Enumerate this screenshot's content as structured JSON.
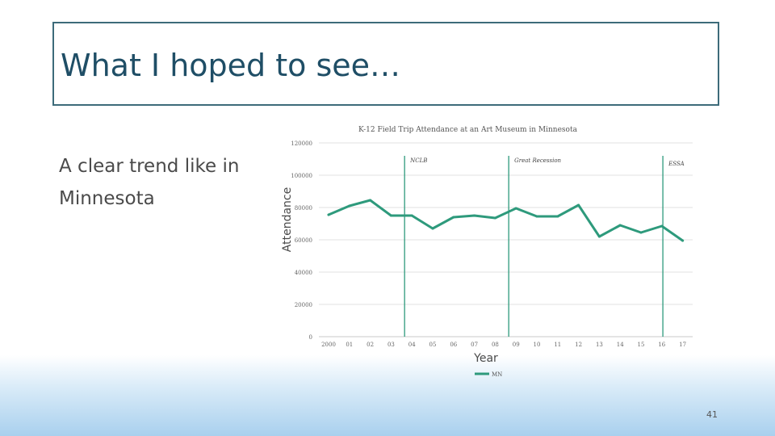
{
  "slide": {
    "title": "What I hoped to see…",
    "body": "A clear trend like in Minnesota",
    "page_number": "41"
  },
  "chart_data": {
    "type": "line",
    "title": "K-12 Field Trip Attendance at an Art Museum in Minnesota",
    "xlabel": "Year",
    "ylabel": "Attendance",
    "ylim": [
      0,
      120000
    ],
    "yticks": [
      0,
      20000,
      40000,
      60000,
      80000,
      100000,
      120000
    ],
    "ytick_labels": [
      "0",
      "20000",
      "40000",
      "60000",
      "80000",
      "100000",
      "120000"
    ],
    "categories": [
      "2000",
      "01",
      "02",
      "03",
      "04",
      "05",
      "06",
      "07",
      "08",
      "09",
      "10",
      "11",
      "12",
      "13",
      "14",
      "15",
      "16",
      "17"
    ],
    "grid": true,
    "legend_position": "bottom",
    "series": [
      {
        "name": "MN",
        "color": "#2e9a7c",
        "values": [
          75500,
          81000,
          84500,
          75000,
          75000,
          67000,
          74000,
          75000,
          73500,
          79500,
          74500,
          74500,
          81500,
          62000,
          69000,
          64500,
          68500,
          59500
        ]
      }
    ],
    "annotations": [
      {
        "label": "NCLB",
        "x_index": 3.65
      },
      {
        "label": "Great Recession",
        "x_index": 8.65
      },
      {
        "label": "ESSA",
        "x_index": 16.05
      }
    ]
  }
}
